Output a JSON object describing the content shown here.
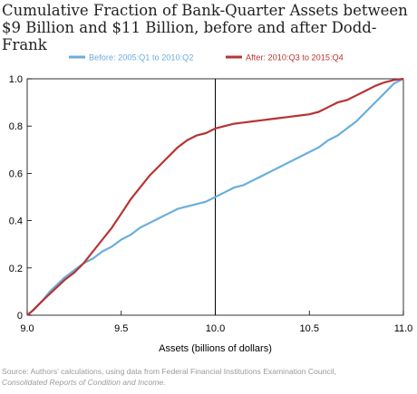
{
  "chart_data": {
    "type": "line",
    "title": [
      "Cumulative Fraction of Bank-Quarter Assets between",
      "$9 Billion and $11 Billion, before and after Dodd-Frank"
    ],
    "xlabel": "Assets (billions of dollars)",
    "ylabel": "",
    "xlim": [
      9.0,
      11.0
    ],
    "ylim": [
      0,
      1.0
    ],
    "x_ticks": [
      "9.0",
      "9.5",
      "10.0",
      "10.5",
      "11.0"
    ],
    "y_ticks": [
      "0",
      "0.2",
      "0.4",
      "0.6",
      "0.8",
      "1.0"
    ],
    "legend_position": "top-center",
    "grid": false,
    "reference_line_x": 10.0,
    "series": [
      {
        "name": "Before: 2005:Q1 to 2010:Q2",
        "color": "#6aaedc",
        "x": [
          9.0,
          9.03,
          9.08,
          9.12,
          9.16,
          9.2,
          9.25,
          9.3,
          9.35,
          9.4,
          9.45,
          9.5,
          9.55,
          9.6,
          9.65,
          9.7,
          9.75,
          9.8,
          9.85,
          9.9,
          9.95,
          10.0,
          10.05,
          10.1,
          10.15,
          10.2,
          10.25,
          10.3,
          10.35,
          10.4,
          10.45,
          10.5,
          10.55,
          10.6,
          10.65,
          10.7,
          10.75,
          10.8,
          10.85,
          10.9,
          10.95,
          11.0
        ],
        "y": [
          0.0,
          0.02,
          0.06,
          0.1,
          0.13,
          0.16,
          0.19,
          0.22,
          0.24,
          0.27,
          0.29,
          0.32,
          0.34,
          0.37,
          0.39,
          0.41,
          0.43,
          0.45,
          0.46,
          0.47,
          0.48,
          0.5,
          0.52,
          0.54,
          0.55,
          0.57,
          0.59,
          0.61,
          0.63,
          0.65,
          0.67,
          0.69,
          0.71,
          0.74,
          0.76,
          0.79,
          0.82,
          0.86,
          0.9,
          0.94,
          0.98,
          1.0
        ]
      },
      {
        "name": "After: 2010:Q3 to 2015:Q4",
        "color": "#b83333",
        "x": [
          9.0,
          9.03,
          9.08,
          9.12,
          9.16,
          9.2,
          9.25,
          9.3,
          9.35,
          9.4,
          9.45,
          9.5,
          9.55,
          9.6,
          9.65,
          9.7,
          9.75,
          9.8,
          9.85,
          9.9,
          9.95,
          10.0,
          10.05,
          10.1,
          10.15,
          10.2,
          10.25,
          10.3,
          10.35,
          10.4,
          10.45,
          10.5,
          10.55,
          10.6,
          10.65,
          10.7,
          10.75,
          10.8,
          10.85,
          10.9,
          10.95,
          11.0
        ],
        "y": [
          0.0,
          0.02,
          0.06,
          0.09,
          0.12,
          0.15,
          0.18,
          0.22,
          0.27,
          0.32,
          0.37,
          0.43,
          0.49,
          0.54,
          0.59,
          0.63,
          0.67,
          0.71,
          0.74,
          0.76,
          0.77,
          0.79,
          0.8,
          0.81,
          0.815,
          0.82,
          0.825,
          0.83,
          0.835,
          0.84,
          0.845,
          0.85,
          0.86,
          0.88,
          0.9,
          0.91,
          0.93,
          0.95,
          0.97,
          0.985,
          0.995,
          1.0
        ]
      }
    ]
  },
  "source": {
    "line1": "Source: Authors’ calculations, using data from Federal Financial Institutions Examination Council,",
    "line2": "Consolidated Reports of Condition and Income."
  }
}
